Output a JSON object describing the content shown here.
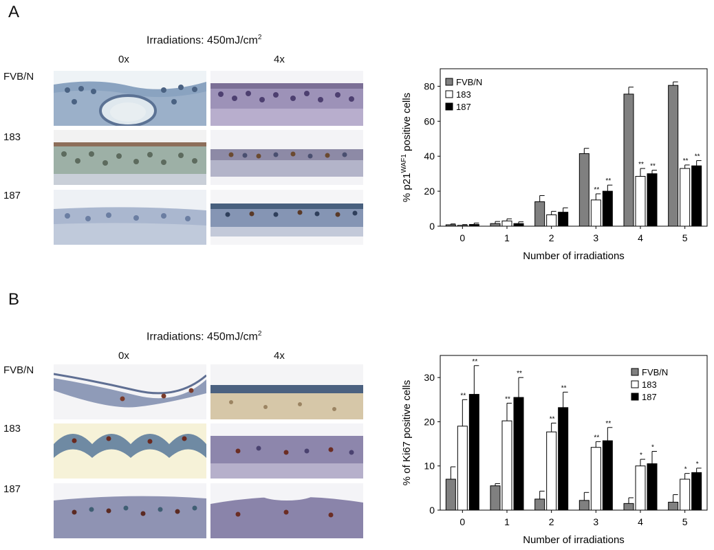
{
  "panels": [
    {
      "letter": "A",
      "title_prefix": "Irradiations: 450mJ/cm",
      "title_sup": "2",
      "col_labels": [
        "0x",
        "4x"
      ],
      "row_labels": [
        "FVB/N",
        "183",
        "187"
      ]
    },
    {
      "letter": "B",
      "title_prefix": "Irradiations: 450mJ/cm",
      "title_sup": "2",
      "col_labels": [
        "0x",
        "4x"
      ],
      "row_labels": [
        "FVB/N",
        "183",
        "187"
      ]
    }
  ],
  "chart_data": [
    {
      "type": "bar",
      "ylabel_prefix": "% p21",
      "ylabel_sup": "WAF1",
      "ylabel_suffix": " positive cells",
      "xlabel": "Number of irradiations",
      "categories": [
        "0",
        "1",
        "2",
        "3",
        "4",
        "5"
      ],
      "ylim": [
        0,
        90
      ],
      "yticks": [
        0,
        20,
        40,
        60,
        80
      ],
      "legend_position": "top-left",
      "series": [
        {
          "name": "FVB/N",
          "color": "#808080",
          "values": [
            0.8,
            1.5,
            14,
            41.5,
            75.5,
            80.5
          ],
          "errors": [
            0.5,
            1.2,
            3.5,
            3,
            4,
            2
          ],
          "marks": [
            "",
            "",
            "",
            "",
            "",
            ""
          ]
        },
        {
          "name": "183",
          "color": "#ffffff",
          "values": [
            0.5,
            3,
            6.5,
            15,
            28.5,
            33
          ],
          "errors": [
            0.4,
            1.2,
            2,
            3.5,
            4.5,
            2
          ],
          "marks": [
            "",
            "",
            "",
            "**",
            "**",
            "**"
          ]
        },
        {
          "name": "187",
          "color": "#000000",
          "values": [
            1,
            1.5,
            8,
            20,
            30,
            34.5
          ],
          "errors": [
            0.8,
            1,
            2.5,
            3.5,
            2,
            3
          ],
          "marks": [
            "",
            "",
            "",
            "**",
            "**",
            "**"
          ]
        }
      ]
    },
    {
      "type": "bar",
      "ylabel_prefix": "% of Ki67 positive cells",
      "ylabel_sup": "",
      "ylabel_suffix": "",
      "xlabel": "Number of irradiations",
      "categories": [
        "0",
        "1",
        "2",
        "3",
        "4",
        "5"
      ],
      "ylim": [
        0,
        35
      ],
      "yticks": [
        0,
        10,
        20,
        30
      ],
      "legend_position": "top-right",
      "series": [
        {
          "name": "FVB/N",
          "color": "#808080",
          "values": [
            7,
            5.5,
            2.5,
            2.2,
            1.5,
            1.8
          ],
          "errors": [
            2.8,
            0.5,
            1.8,
            1.8,
            1.3,
            1.7
          ],
          "marks": [
            "",
            "",
            "",
            "",
            "",
            ""
          ]
        },
        {
          "name": "183",
          "color": "#ffffff",
          "values": [
            19,
            20.2,
            17.7,
            14.2,
            10,
            7
          ],
          "errors": [
            6,
            4,
            2,
            1.3,
            1.5,
            1.3
          ],
          "marks": [
            "**",
            "**",
            "**",
            "**",
            "*",
            "*"
          ]
        },
        {
          "name": "187",
          "color": "#000000",
          "values": [
            26.2,
            25.5,
            23.2,
            15.7,
            10.5,
            8.5
          ],
          "errors": [
            6.5,
            4.5,
            3.5,
            3,
            2.8,
            1
          ],
          "marks": [
            "**",
            "**",
            "**",
            "**",
            "*",
            "*"
          ]
        }
      ]
    }
  ]
}
